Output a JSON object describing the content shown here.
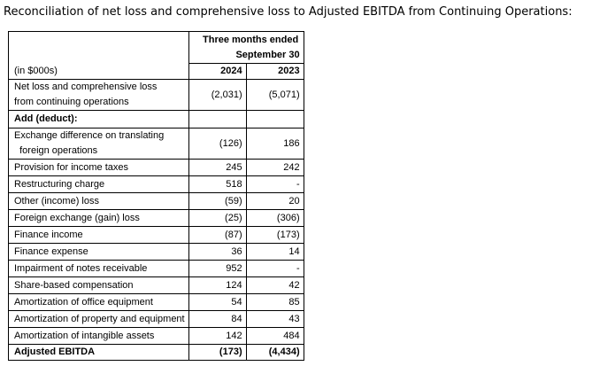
{
  "title": "Reconciliation of net loss and comprehensive loss to Adjusted EBITDA from Continuing Operations:",
  "table": {
    "header": {
      "period": [
        "Three months ended",
        "September 30"
      ],
      "unit": "(in $000s)",
      "years": [
        "2024",
        "2023"
      ]
    },
    "rows": [
      {
        "label": [
          "Net loss and comprehensive loss",
          "from continuing operations"
        ],
        "values": [
          "(2,031)",
          "(5,071)"
        ]
      },
      {
        "label": [
          "Add (deduct):"
        ],
        "bold": true
      },
      {
        "label": [
          "Exchange difference on translating",
          "  foreign operations"
        ],
        "values": [
          "(126)",
          "186"
        ]
      },
      {
        "label": [
          "Provision for income taxes"
        ],
        "values": [
          "245",
          "242"
        ]
      },
      {
        "label": [
          "Restructuring charge"
        ],
        "values": [
          "518",
          "-"
        ]
      },
      {
        "label": [
          "Other (income) loss"
        ],
        "values": [
          "(59)",
          "20"
        ]
      },
      {
        "label": [
          "Foreign exchange (gain) loss"
        ],
        "values": [
          "(25)",
          "(306)"
        ]
      },
      {
        "label": [
          "Finance income"
        ],
        "values": [
          "(87)",
          "(173)"
        ]
      },
      {
        "label": [
          "Finance expense"
        ],
        "values": [
          "36",
          "14"
        ]
      },
      {
        "label": [
          "Impairment of notes receivable"
        ],
        "values": [
          "952",
          "-"
        ]
      },
      {
        "label": [
          "Share-based compensation"
        ],
        "values": [
          "124",
          "42"
        ]
      },
      {
        "label": [
          "Amortization of office equipment"
        ],
        "values": [
          "54",
          "85"
        ]
      },
      {
        "label": [
          "Amortization of property and equipment"
        ],
        "values": [
          "84",
          "43"
        ]
      },
      {
        "label": [
          "Amortization of intangible assets"
        ],
        "values": [
          "142",
          "484"
        ]
      },
      {
        "label": [
          "Adjusted EBITDA"
        ],
        "values": [
          "(173)",
          "(4,434)"
        ],
        "bold": true
      }
    ]
  }
}
